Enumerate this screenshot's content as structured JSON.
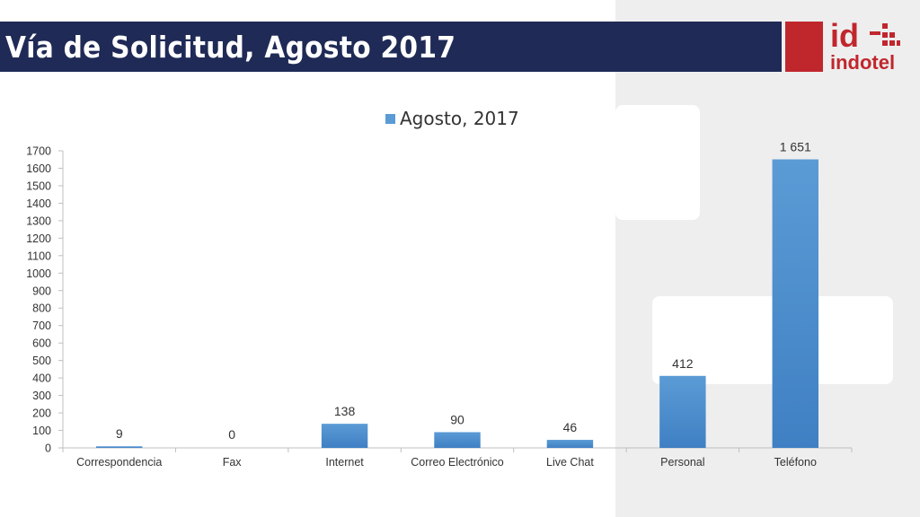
{
  "slide": {
    "title": "Vía de Solicitud, Agosto 2017"
  },
  "logo": {
    "top_text": "id",
    "bottom_text": "indotel",
    "color": "#c0272d"
  },
  "colors": {
    "title_bar": "#1f2a56",
    "bar": "#5b9bd5",
    "bar_dark": "#3f80c4"
  },
  "chart_data": {
    "type": "bar",
    "categories": [
      "Correspondencia",
      "Fax",
      "Internet",
      "Correo Electrónico",
      "Live Chat",
      "Personal",
      "Teléfono"
    ],
    "series": [
      {
        "name": "Agosto, 2017",
        "values": [
          9,
          0,
          138,
          90,
          46,
          412,
          1651
        ]
      }
    ],
    "data_labels": [
      "9",
      "0",
      "138",
      "90",
      "46",
      "412",
      "1 651"
    ],
    "ylim": [
      0,
      1700
    ],
    "yticks": [
      0,
      100,
      200,
      300,
      400,
      500,
      600,
      700,
      800,
      900,
      1000,
      1100,
      1200,
      1300,
      1400,
      1500,
      1600,
      1700
    ],
    "legend_position": "top",
    "grid": false
  }
}
